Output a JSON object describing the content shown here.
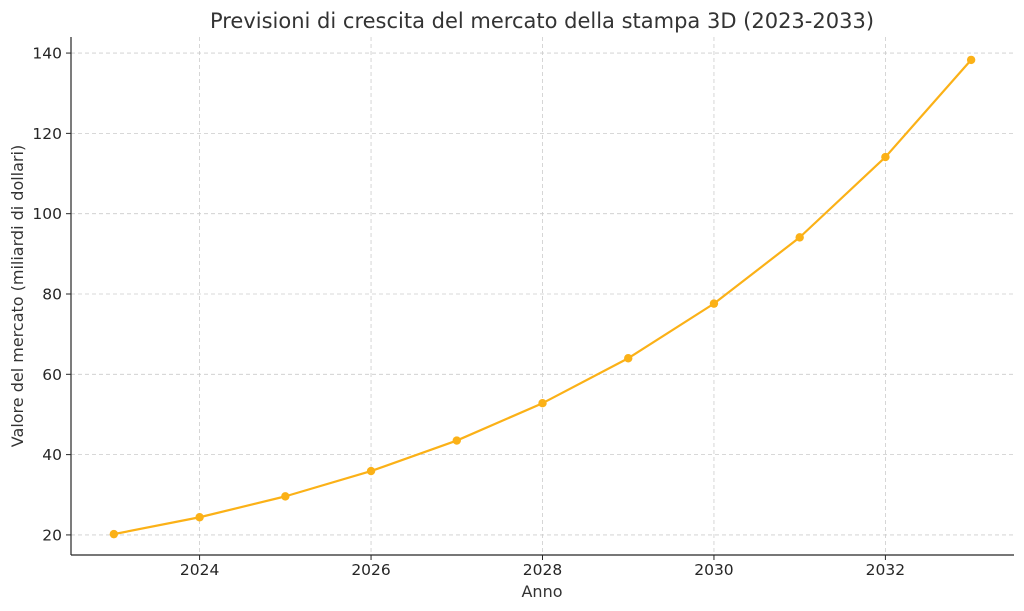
{
  "chart_data": {
    "type": "line",
    "title": "Previsioni di crescita del mercato della stampa 3D (2023-2033)",
    "xlabel": "Anno",
    "ylabel": "Valore del mercato (miliardi di dollari)",
    "xlim": [
      2022.5,
      2033.5
    ],
    "ylim": [
      15,
      144
    ],
    "x_ticks": [
      2024,
      2026,
      2028,
      2030,
      2032
    ],
    "y_ticks": [
      20,
      40,
      60,
      80,
      100,
      120,
      140
    ],
    "grid": true,
    "color": "#FBB117",
    "series": [
      {
        "x": [
          2023,
          2024,
          2025,
          2026,
          2027,
          2028,
          2029,
          2030,
          2031,
          2032,
          2033
        ],
        "values": [
          20.2,
          24.4,
          29.6,
          35.9,
          43.5,
          52.8,
          64.0,
          77.6,
          94.1,
          114.1,
          138.3
        ]
      }
    ]
  }
}
